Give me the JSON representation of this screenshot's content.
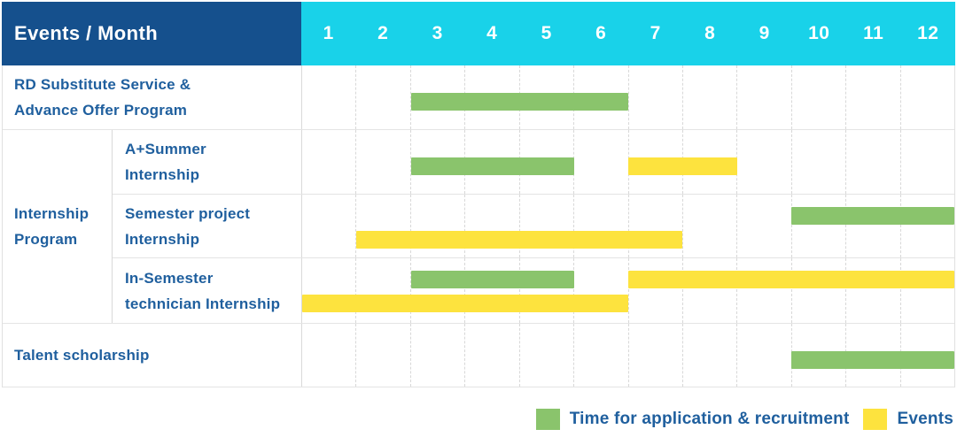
{
  "colors": {
    "header_bg": "#15508d",
    "month_strip_bg": "#19d2e9",
    "label_text": "#1f5f9e",
    "application_green": "#8ac46c",
    "events_yellow": "#fde33e"
  },
  "table": {
    "header_title": "Events / Month",
    "row_labels": {
      "rd": "RD Substitute Service &\nAdvance Offer Program",
      "internship_group": "Internship\nProgram",
      "a_summer": "A+Summer\nInternship",
      "semester_project": "Semester project\nInternship",
      "in_semester": "In-Semester\ntechnician Internship",
      "talent": "Talent scholarship"
    }
  },
  "legend": {
    "application_label": "Time for application & recruitment",
    "events_label": "Events"
  },
  "chart_data": {
    "type": "bar",
    "subtype": "gantt",
    "title": "Events / Month",
    "x_axis": {
      "label": "Month",
      "ticks": [
        "1",
        "2",
        "3",
        "4",
        "5",
        "6",
        "7",
        "8",
        "9",
        "10",
        "11",
        "12"
      ],
      "range": [
        1,
        12
      ],
      "grid": "dashed-vertical"
    },
    "legend_position": "bottom-right",
    "series": [
      {
        "name": "Time for application & recruitment",
        "color": "#8ac46c"
      },
      {
        "name": "Events",
        "color": "#fde33e"
      }
    ],
    "rows": [
      {
        "group": "RD Substitute Service & Advance Offer Program",
        "item": null,
        "bars": [
          {
            "series": "Time for application & recruitment",
            "start_month": 3,
            "end_month": 6,
            "line": "single"
          }
        ]
      },
      {
        "group": "Internship Program",
        "item": "A+Summer Internship",
        "bars": [
          {
            "series": "Time for application & recruitment",
            "start_month": 3,
            "end_month": 5,
            "line": "single"
          },
          {
            "series": "Events",
            "start_month": 7,
            "end_month": 8,
            "line": "single"
          }
        ]
      },
      {
        "group": "Internship Program",
        "item": "Semester project Internship",
        "bars": [
          {
            "series": "Time for application & recruitment",
            "start_month": 10,
            "end_month": 12,
            "line": "top"
          },
          {
            "series": "Events",
            "start_month": 2,
            "end_month": 7,
            "line": "bottom"
          }
        ]
      },
      {
        "group": "Internship Program",
        "item": "In-Semester technician Internship",
        "bars": [
          {
            "series": "Time for application & recruitment",
            "start_month": 3,
            "end_month": 5,
            "line": "top"
          },
          {
            "series": "Events",
            "start_month": 7,
            "end_month": 12,
            "line": "top"
          },
          {
            "series": "Events",
            "start_month": 1,
            "end_month": 6,
            "line": "bottom"
          }
        ]
      },
      {
        "group": "Talent scholarship",
        "item": null,
        "bars": [
          {
            "series": "Time for application & recruitment",
            "start_month": 10,
            "end_month": 12,
            "line": "single"
          }
        ]
      }
    ]
  }
}
